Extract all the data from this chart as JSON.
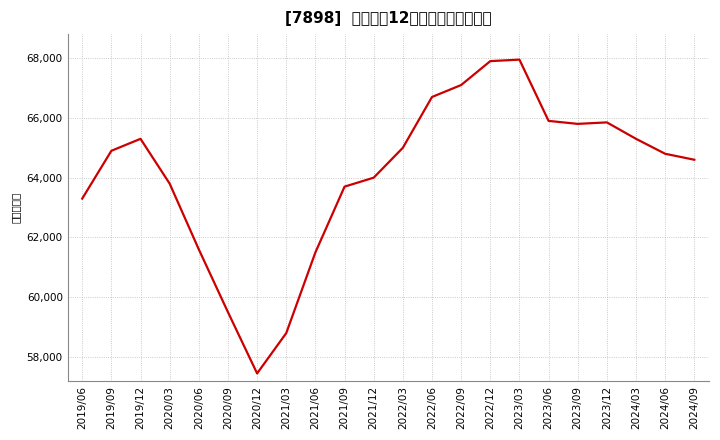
{
  "title": "[7898]  売上高の12か月移動合計の推移",
  "ylabel": "（百万円）",
  "line_color": "#cc0000",
  "background_color": "#ffffff",
  "plot_bg_color": "#ffffff",
  "grid_color": "#bbbbbb",
  "dates": [
    "2019/06",
    "2019/09",
    "2019/12",
    "2020/03",
    "2020/06",
    "2020/09",
    "2020/12",
    "2021/03",
    "2021/06",
    "2021/09",
    "2021/12",
    "2022/03",
    "2022/06",
    "2022/09",
    "2022/12",
    "2023/03",
    "2023/06",
    "2023/09",
    "2023/12",
    "2024/03",
    "2024/06",
    "2024/09"
  ],
  "values": [
    63300,
    64900,
    65300,
    63800,
    61600,
    59500,
    57450,
    58800,
    61500,
    63700,
    64000,
    65000,
    66700,
    67100,
    67900,
    67950,
    65900,
    65800,
    65850,
    65300,
    64800,
    64600
  ],
  "yticks": [
    58000,
    60000,
    62000,
    64000,
    66000,
    68000
  ],
  "ylim": [
    57200,
    68800
  ],
  "title_fontsize": 11,
  "tick_fontsize": 7.5,
  "ylabel_fontsize": 7.5,
  "line_width": 1.6
}
